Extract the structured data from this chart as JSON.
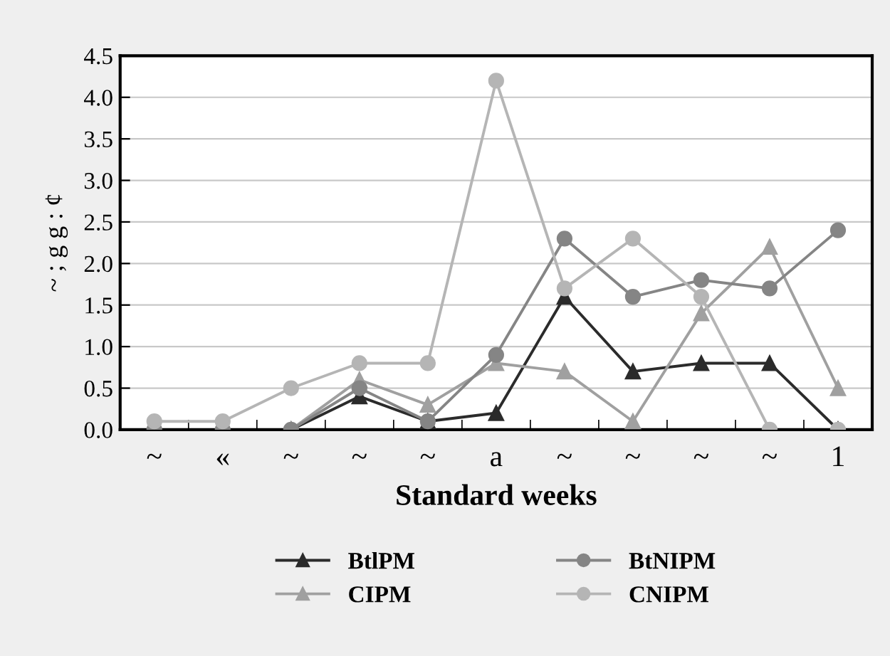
{
  "chart_data": {
    "type": "line",
    "xlabel": "Standard weeks",
    "ylabel": "~ ; g g : ȼ",
    "categories": [
      "~",
      "«",
      "~",
      "~",
      "~",
      "a",
      "~",
      "~",
      "~",
      "~",
      "1"
    ],
    "ylim": [
      0,
      4.5
    ],
    "yticks": [
      {
        "value": 0,
        "label": "0.0"
      },
      0.5,
      {
        "value": 1,
        "label": "1.0"
      },
      1.5,
      {
        "value": 2,
        "label": "2.0"
      },
      2.5,
      {
        "value": 3,
        "label": "3.0"
      },
      3.5,
      {
        "value": 4,
        "label": "4.0"
      },
      4.5
    ],
    "grid": "y",
    "legend": "bottom",
    "series": [
      {
        "name": "BtlPM",
        "color": "#2b2b2b",
        "marker": "triangle",
        "values": [
          0,
          0,
          0,
          0.4,
          0.1,
          0.2,
          1.6,
          0.7,
          0.8,
          0.8,
          0
        ]
      },
      {
        "name": "CIPM",
        "color": "#a0a0a0",
        "marker": "triangle",
        "values": [
          0,
          0,
          0,
          0.6,
          0.3,
          0.8,
          0.7,
          0.1,
          1.4,
          2.2,
          0.5
        ]
      },
      {
        "name": "BtNIPM",
        "color": "#858585",
        "marker": "circle",
        "values": [
          0,
          0,
          0,
          0.5,
          0.1,
          0.9,
          2.3,
          1.6,
          1.8,
          1.7,
          2.4
        ]
      },
      {
        "name": "CNIPM",
        "color": "#b5b5b5",
        "marker": "circle",
        "values": [
          0.1,
          0.1,
          0.5,
          0.8,
          0.8,
          4.2,
          1.7,
          2.3,
          1.6,
          0,
          0
        ]
      }
    ]
  }
}
